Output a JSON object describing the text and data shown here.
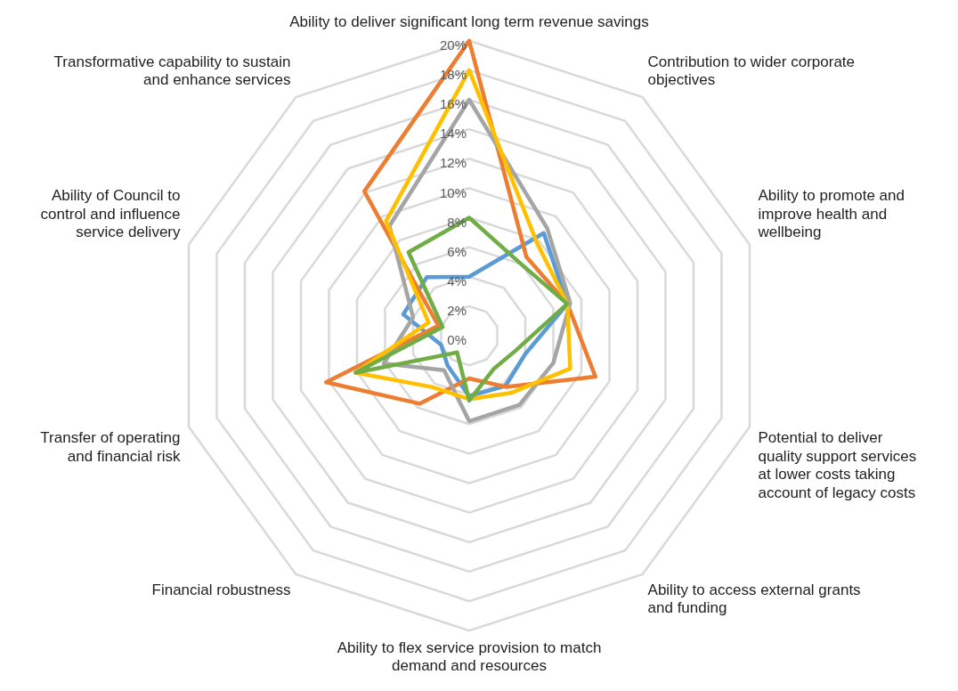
{
  "chart_data": {
    "type": "radar",
    "categories": [
      "Ability to deliver significant long term revenue savings",
      "Contribution to wider corporate objectives",
      "Ability to promote and improve health and wellbeing",
      "Potential to deliver quality support services at lower costs taking account of legacy costs",
      "Ability to access external grants and funding",
      "Ability to flex service provision to match demand and resources",
      "Financial robustness",
      "Transfer of operating and financial risk",
      "Ability of Council to control and influence service delivery",
      "Transformative capability to sustain and enhance services"
    ],
    "series": [
      {
        "color": "#5b9bd5",
        "values": [
          4,
          8.6,
          7,
          4,
          4.2,
          4.1,
          2.5,
          2,
          4.7,
          4.9
        ]
      },
      {
        "color": "#ed7d31",
        "values": [
          20,
          6.6,
          7,
          9,
          4.3,
          2.9,
          5.7,
          10.2,
          2.2,
          12.1
        ]
      },
      {
        "color": "#a5a5a5",
        "values": [
          16,
          9,
          7.2,
          6,
          5.8,
          5.8,
          2.9,
          6.1,
          4,
          9.2
        ]
      },
      {
        "color": "#ffc000",
        "values": [
          18,
          7.8,
          7,
          7.2,
          4.8,
          4.3,
          4.3,
          8.1,
          2.9,
          9.6
        ]
      },
      {
        "color": "#70ad47",
        "values": [
          8,
          6,
          7,
          3.3,
          2.8,
          4.4,
          1.4,
          8.1,
          1.9,
          7
        ]
      }
    ],
    "ylim": [
      0,
      20
    ],
    "yticks": [
      {
        "value": 0,
        "label": "0%"
      },
      {
        "value": 2,
        "label": "2%"
      },
      {
        "value": 4,
        "label": "4%"
      },
      {
        "value": 6,
        "label": "6%"
      },
      {
        "value": 8,
        "label": "8%"
      },
      {
        "value": 10,
        "label": "10%"
      },
      {
        "value": 12,
        "label": "12%"
      },
      {
        "value": 14,
        "label": "14%"
      },
      {
        "value": 16,
        "label": "16%"
      },
      {
        "value": 18,
        "label": "18%"
      },
      {
        "value": 20,
        "label": "20%"
      }
    ],
    "grid": true,
    "legend": false,
    "marker": "none"
  }
}
